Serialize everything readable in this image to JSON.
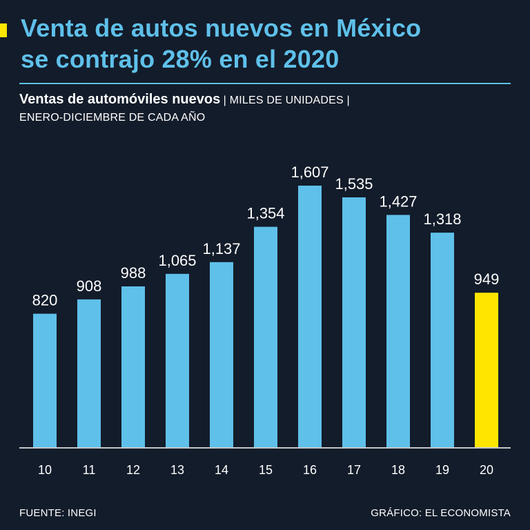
{
  "header": {
    "title_line1": "Venta de autos nuevos en México",
    "title_line2": "se contrajo 28% en el 2020",
    "subtitle": "Ventas de automóviles nuevos",
    "units": "| MILES DE UNIDADES |",
    "period": "ENERO-DICIEMBRE DE CADA AÑO"
  },
  "footer": {
    "source": "FUENTE: INEGI",
    "credit": "GRÁFICO: EL ECONOMISTA"
  },
  "colors": {
    "background": "#131c2a",
    "bar": "#5fc0ea",
    "highlight": "#ffe600",
    "text": "#ffffff",
    "axis": "#ffffff"
  },
  "chart_data": {
    "type": "bar",
    "title": "Ventas de automóviles nuevos",
    "xlabel": "",
    "ylabel": "Miles de unidades",
    "categories": [
      "10",
      "11",
      "12",
      "13",
      "14",
      "15",
      "16",
      "17",
      "18",
      "19",
      "20"
    ],
    "values": [
      820,
      908,
      988,
      1065,
      1137,
      1354,
      1607,
      1535,
      1427,
      1318,
      949
    ],
    "value_labels": [
      "820",
      "908",
      "988",
      "1,065",
      "1,137",
      "1,354",
      "1,607",
      "1,535",
      "1,427",
      "1,318",
      "949"
    ],
    "highlight_category": "20",
    "ylim": [
      0,
      1607
    ],
    "grid": false
  }
}
